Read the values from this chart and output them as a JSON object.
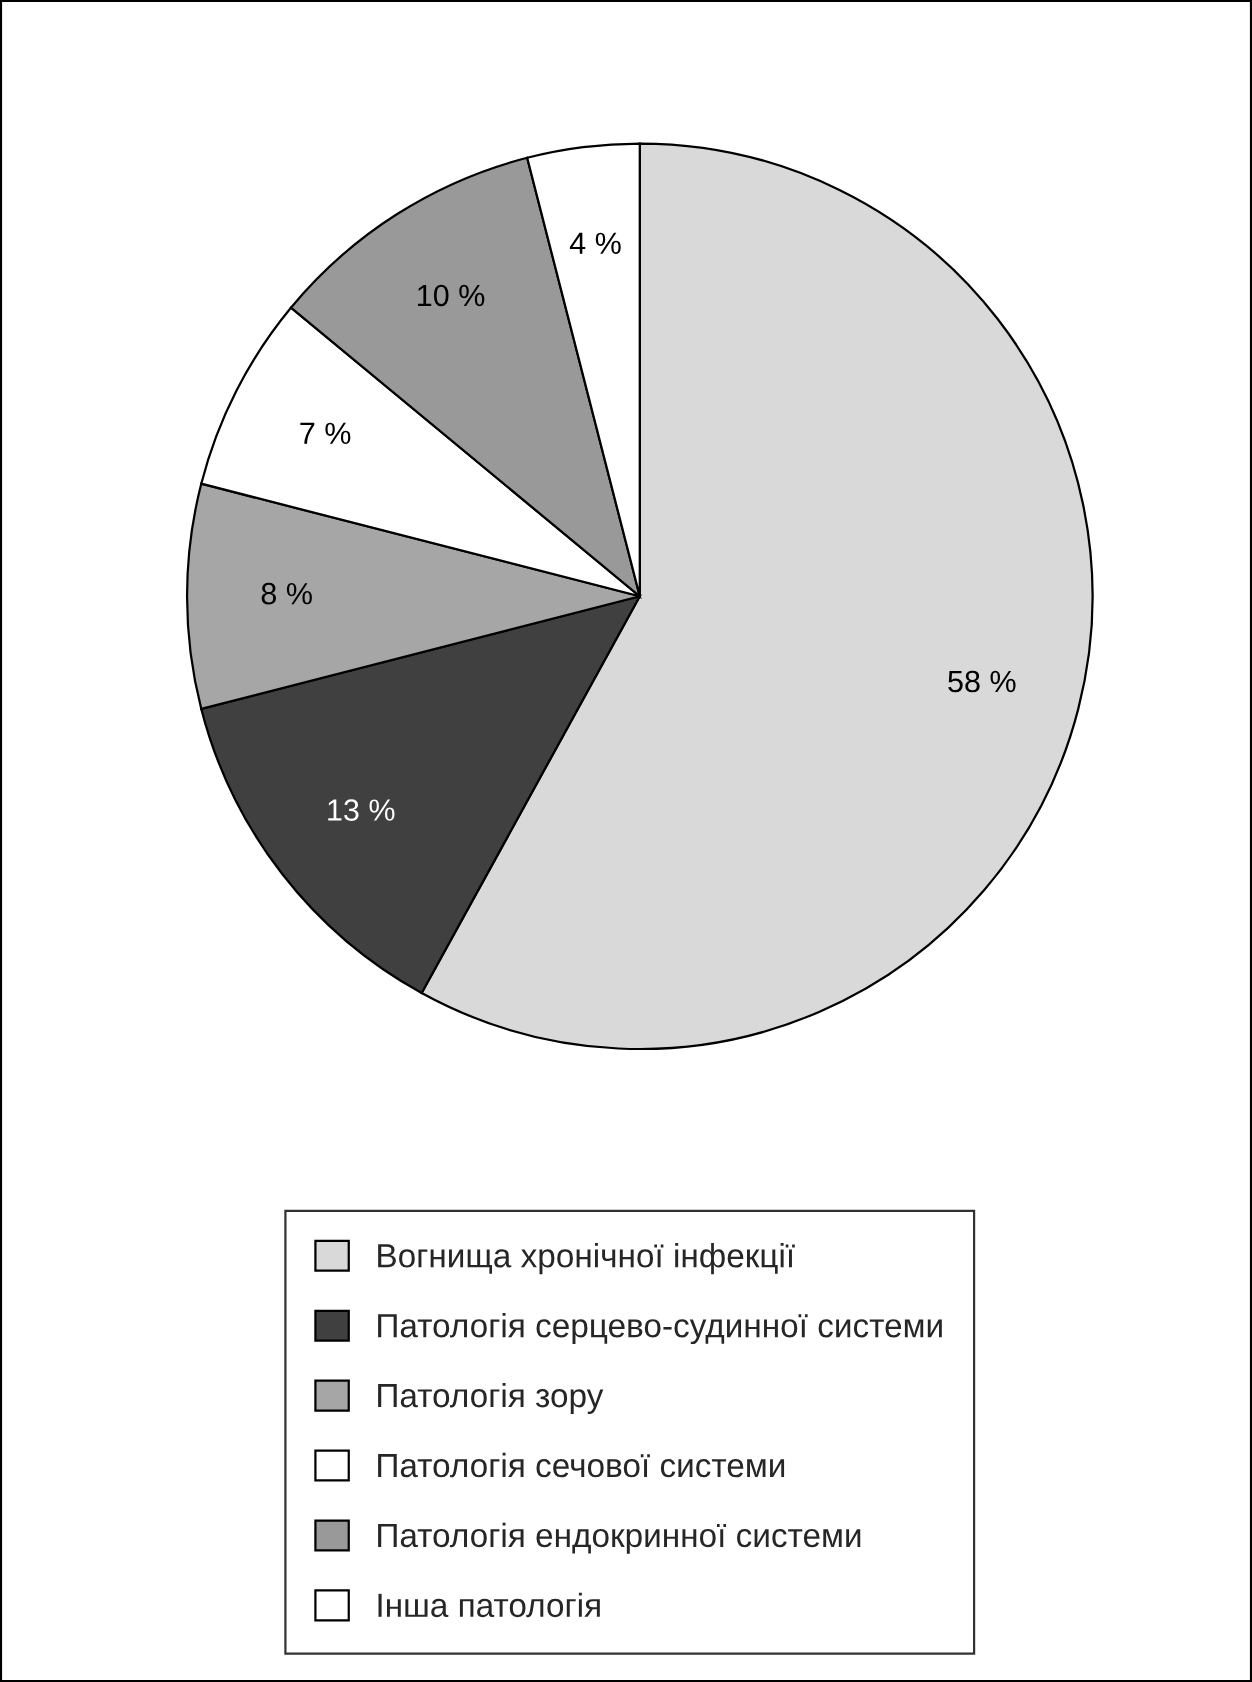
{
  "chart_data": {
    "type": "pie",
    "categories": [
      "Вогнища хронічної інфекції",
      "Патологія серцево-судинної системи",
      "Патологія зору",
      "Патологія сечової системи",
      "Патологія ендокринної системи",
      "Інша патологія"
    ],
    "values": [
      58,
      13,
      8,
      7,
      10,
      4
    ],
    "value_labels": [
      "58 %",
      "13 %",
      "8 %",
      "7 %",
      "10 %",
      "4 %"
    ],
    "colors": [
      "#d9d9d9",
      "#404040",
      "#a6a6a6",
      "#ffffff",
      "#999999",
      "#ffffff"
    ],
    "legend": "bottom"
  }
}
